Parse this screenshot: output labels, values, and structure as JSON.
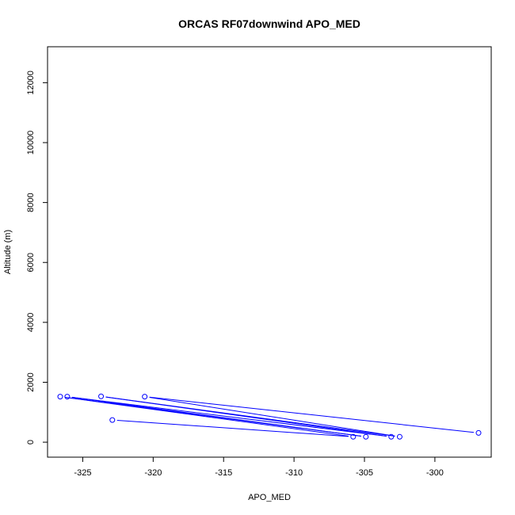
{
  "chart_data": {
    "type": "line",
    "title": "ORCAS RF07downwind APO_MED",
    "xlabel": "APO_MED",
    "ylabel": "Altitude (m)",
    "xlim": [
      -327.5,
      -296.0
    ],
    "ylim": [
      -500,
      13200
    ],
    "x_ticks": [
      -325,
      -320,
      -315,
      -310,
      -305,
      -300
    ],
    "y_ticks": [
      0,
      2000,
      4000,
      6000,
      8000,
      10000,
      12000
    ],
    "grid": false,
    "legend": "none",
    "series": [
      {
        "color": "#0000ff",
        "marker": "open-circle",
        "points": [
          {
            "x": -322.9,
            "y": 740
          },
          {
            "x": -305.8,
            "y": 180
          },
          {
            "x": -326.6,
            "y": 1520
          },
          {
            "x": -304.9,
            "y": 180
          },
          {
            "x": -326.1,
            "y": 1520
          },
          {
            "x": -303.1,
            "y": 180
          },
          {
            "x": -323.7,
            "y": 1530
          },
          {
            "x": -302.5,
            "y": 180
          },
          {
            "x": -320.6,
            "y": 1520
          },
          {
            "x": -296.9,
            "y": 310
          }
        ]
      }
    ]
  }
}
